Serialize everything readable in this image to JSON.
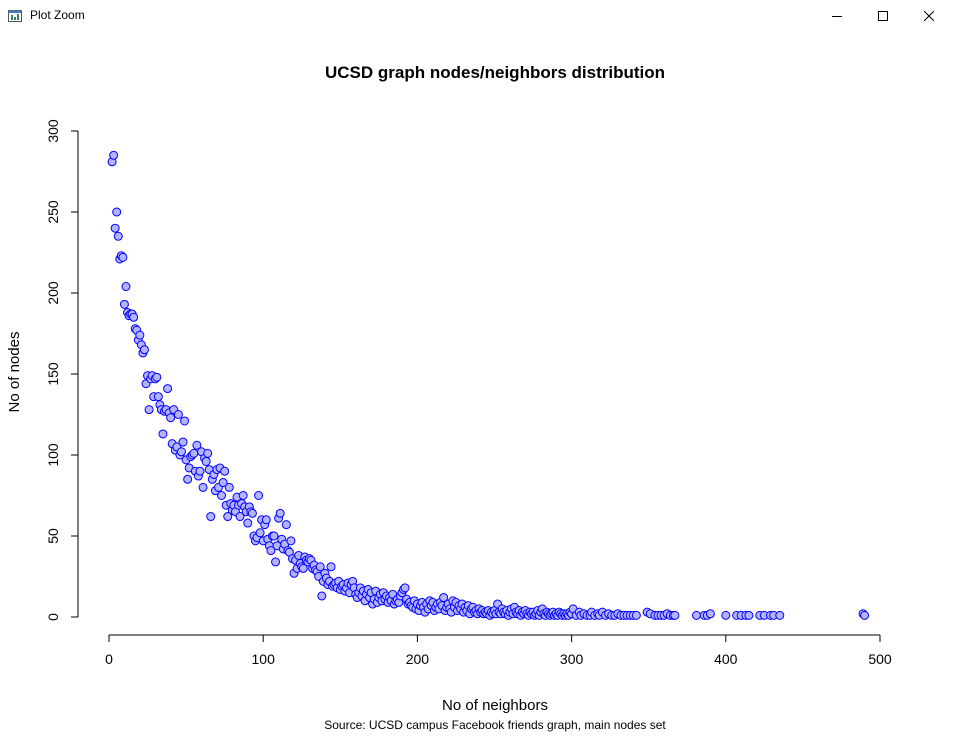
{
  "window": {
    "title": "Plot Zoom",
    "icons": {
      "app": "plot-window-icon",
      "minimize": "minimize-icon",
      "maximize": "maximize-icon",
      "close": "close-icon"
    }
  },
  "chart_data": {
    "type": "scatter",
    "title": "UCSD graph nodes/neighbors distribution",
    "xlabel": "No of neighbors",
    "ylabel": "No of nodes",
    "caption": "Source: UCSD campus Facebook friends graph, main nodes set",
    "xlim": [
      0,
      500
    ],
    "ylim": [
      0,
      300
    ],
    "x_ticks": [
      0,
      100,
      200,
      300,
      400,
      500
    ],
    "y_ticks": [
      0,
      50,
      100,
      150,
      200,
      250,
      300
    ],
    "grid": false,
    "legend": "none",
    "marker": {
      "shape": "circle",
      "stroke": "#0000ff",
      "fill": "#b3b3ff"
    },
    "points": [
      [
        2,
        281
      ],
      [
        3,
        285
      ],
      [
        4,
        240
      ],
      [
        5,
        250
      ],
      [
        6,
        235
      ],
      [
        7,
        221
      ],
      [
        8,
        223
      ],
      [
        9,
        222
      ],
      [
        10,
        193
      ],
      [
        11,
        204
      ],
      [
        12,
        188
      ],
      [
        13,
        186
      ],
      [
        14,
        187
      ],
      [
        15,
        187
      ],
      [
        16,
        185
      ],
      [
        17,
        178
      ],
      [
        18,
        177
      ],
      [
        19,
        171
      ],
      [
        20,
        174
      ],
      [
        21,
        168
      ],
      [
        22,
        163
      ],
      [
        23,
        165
      ],
      [
        24,
        144
      ],
      [
        25,
        149
      ],
      [
        26,
        128
      ],
      [
        27,
        147
      ],
      [
        28,
        149
      ],
      [
        29,
        136
      ],
      [
        30,
        147
      ],
      [
        31,
        148
      ],
      [
        32,
        136
      ],
      [
        33,
        131
      ],
      [
        34,
        128
      ],
      [
        35,
        113
      ],
      [
        36,
        127
      ],
      [
        37,
        128
      ],
      [
        38,
        141
      ],
      [
        39,
        126
      ],
      [
        40,
        123
      ],
      [
        41,
        107
      ],
      [
        42,
        128
      ],
      [
        43,
        103
      ],
      [
        44,
        105
      ],
      [
        45,
        125
      ],
      [
        46,
        100
      ],
      [
        47,
        102
      ],
      [
        48,
        108
      ],
      [
        49,
        121
      ],
      [
        50,
        97
      ],
      [
        51,
        85
      ],
      [
        52,
        92
      ],
      [
        53,
        99
      ],
      [
        54,
        100
      ],
      [
        55,
        101
      ],
      [
        56,
        90
      ],
      [
        57,
        106
      ],
      [
        58,
        87
      ],
      [
        59,
        90
      ],
      [
        60,
        102
      ],
      [
        61,
        80
      ],
      [
        62,
        98
      ],
      [
        63,
        96
      ],
      [
        64,
        101
      ],
      [
        65,
        91
      ],
      [
        66,
        62
      ],
      [
        67,
        85
      ],
      [
        68,
        88
      ],
      [
        69,
        78
      ],
      [
        70,
        91
      ],
      [
        71,
        80
      ],
      [
        72,
        92
      ],
      [
        73,
        75
      ],
      [
        74,
        83
      ],
      [
        75,
        90
      ],
      [
        76,
        69
      ],
      [
        77,
        62
      ],
      [
        78,
        80
      ],
      [
        79,
        70
      ],
      [
        80,
        66
      ],
      [
        81,
        69
      ],
      [
        82,
        65
      ],
      [
        83,
        74
      ],
      [
        84,
        69
      ],
      [
        85,
        62
      ],
      [
        86,
        70
      ],
      [
        87,
        75
      ],
      [
        88,
        68
      ],
      [
        89,
        65
      ],
      [
        90,
        58
      ],
      [
        91,
        68
      ],
      [
        92,
        65
      ],
      [
        93,
        64
      ],
      [
        94,
        50
      ],
      [
        95,
        47
      ],
      [
        96,
        49
      ],
      [
        97,
        75
      ],
      [
        98,
        52
      ],
      [
        99,
        60
      ],
      [
        100,
        47
      ],
      [
        101,
        57
      ],
      [
        102,
        60
      ],
      [
        103,
        48
      ],
      [
        104,
        44
      ],
      [
        105,
        41
      ],
      [
        106,
        50
      ],
      [
        107,
        50
      ],
      [
        108,
        34
      ],
      [
        109,
        44
      ],
      [
        110,
        61
      ],
      [
        111,
        64
      ],
      [
        112,
        48
      ],
      [
        113,
        42
      ],
      [
        114,
        45
      ],
      [
        115,
        57
      ],
      [
        116,
        41
      ],
      [
        117,
        40
      ],
      [
        118,
        47
      ],
      [
        119,
        36
      ],
      [
        120,
        27
      ],
      [
        121,
        35
      ],
      [
        122,
        30
      ],
      [
        123,
        38
      ],
      [
        124,
        33
      ],
      [
        125,
        31
      ],
      [
        126,
        30
      ],
      [
        127,
        37
      ],
      [
        128,
        35
      ],
      [
        129,
        34
      ],
      [
        130,
        36
      ],
      [
        131,
        35
      ],
      [
        132,
        30
      ],
      [
        133,
        32
      ],
      [
        134,
        29
      ],
      [
        135,
        28
      ],
      [
        136,
        25
      ],
      [
        137,
        31
      ],
      [
        138,
        13
      ],
      [
        139,
        22
      ],
      [
        140,
        27
      ],
      [
        141,
        24
      ],
      [
        142,
        20
      ],
      [
        143,
        22
      ],
      [
        144,
        31
      ],
      [
        145,
        19
      ],
      [
        146,
        20
      ],
      [
        147,
        21
      ],
      [
        148,
        18
      ],
      [
        149,
        22
      ],
      [
        150,
        17
      ],
      [
        151,
        19
      ],
      [
        152,
        20
      ],
      [
        153,
        16
      ],
      [
        154,
        18
      ],
      [
        155,
        21
      ],
      [
        156,
        15
      ],
      [
        157,
        20
      ],
      [
        158,
        22
      ],
      [
        159,
        18
      ],
      [
        160,
        14
      ],
      [
        161,
        12
      ],
      [
        162,
        15
      ],
      [
        163,
        18
      ],
      [
        164,
        13
      ],
      [
        165,
        16
      ],
      [
        166,
        10
      ],
      [
        167,
        14
      ],
      [
        168,
        17
      ],
      [
        169,
        12
      ],
      [
        170,
        15
      ],
      [
        171,
        8
      ],
      [
        172,
        11
      ],
      [
        173,
        16
      ],
      [
        174,
        9
      ],
      [
        175,
        12
      ],
      [
        176,
        14
      ],
      [
        177,
        10
      ],
      [
        178,
        15
      ],
      [
        179,
        11
      ],
      [
        180,
        13
      ],
      [
        181,
        9
      ],
      [
        182,
        12
      ],
      [
        183,
        10
      ],
      [
        184,
        14
      ],
      [
        185,
        8
      ],
      [
        186,
        10
      ],
      [
        187,
        11
      ],
      [
        188,
        9
      ],
      [
        189,
        13
      ],
      [
        190,
        15
      ],
      [
        191,
        17
      ],
      [
        192,
        18
      ],
      [
        193,
        11
      ],
      [
        194,
        8
      ],
      [
        195,
        9
      ],
      [
        196,
        7
      ],
      [
        197,
        6
      ],
      [
        198,
        10
      ],
      [
        199,
        5
      ],
      [
        200,
        8
      ],
      [
        201,
        4
      ],
      [
        202,
        7
      ],
      [
        203,
        9
      ],
      [
        204,
        6
      ],
      [
        205,
        3
      ],
      [
        206,
        8
      ],
      [
        207,
        5
      ],
      [
        208,
        10
      ],
      [
        209,
        7
      ],
      [
        210,
        9
      ],
      [
        211,
        4
      ],
      [
        212,
        6
      ],
      [
        213,
        8
      ],
      [
        214,
        5
      ],
      [
        215,
        9
      ],
      [
        216,
        7
      ],
      [
        217,
        12
      ],
      [
        218,
        4
      ],
      [
        219,
        6
      ],
      [
        220,
        8
      ],
      [
        221,
        5
      ],
      [
        222,
        3
      ],
      [
        223,
        10
      ],
      [
        224,
        6
      ],
      [
        225,
        9
      ],
      [
        226,
        4
      ],
      [
        227,
        7
      ],
      [
        228,
        5
      ],
      [
        229,
        8
      ],
      [
        230,
        3
      ],
      [
        231,
        6
      ],
      [
        232,
        4
      ],
      [
        233,
        7
      ],
      [
        234,
        2
      ],
      [
        235,
        5
      ],
      [
        236,
        6
      ],
      [
        237,
        3
      ],
      [
        238,
        4
      ],
      [
        239,
        2
      ],
      [
        240,
        5
      ],
      [
        241,
        3
      ],
      [
        242,
        4
      ],
      [
        243,
        2
      ],
      [
        244,
        3
      ],
      [
        245,
        2
      ],
      [
        246,
        4
      ],
      [
        247,
        1
      ],
      [
        248,
        3
      ],
      [
        249,
        2
      ],
      [
        250,
        4
      ],
      [
        251,
        2
      ],
      [
        252,
        8
      ],
      [
        253,
        3
      ],
      [
        254,
        2
      ],
      [
        255,
        5
      ],
      [
        256,
        3
      ],
      [
        257,
        2
      ],
      [
        258,
        4
      ],
      [
        259,
        1
      ],
      [
        260,
        3
      ],
      [
        261,
        5
      ],
      [
        262,
        2
      ],
      [
        263,
        6
      ],
      [
        264,
        3
      ],
      [
        265,
        2
      ],
      [
        266,
        4
      ],
      [
        267,
        1
      ],
      [
        268,
        3
      ],
      [
        269,
        2
      ],
      [
        270,
        4
      ],
      [
        271,
        2
      ],
      [
        272,
        1
      ],
      [
        273,
        3
      ],
      [
        274,
        2
      ],
      [
        275,
        3
      ],
      [
        276,
        1
      ],
      [
        277,
        2
      ],
      [
        278,
        4
      ],
      [
        279,
        1
      ],
      [
        280,
        3
      ],
      [
        281,
        5
      ],
      [
        282,
        2
      ],
      [
        283,
        1
      ],
      [
        284,
        3
      ],
      [
        285,
        2
      ],
      [
        286,
        1
      ],
      [
        287,
        2
      ],
      [
        288,
        3
      ],
      [
        289,
        1
      ],
      [
        290,
        2
      ],
      [
        291,
        1
      ],
      [
        292,
        3
      ],
      [
        293,
        2
      ],
      [
        294,
        1
      ],
      [
        295,
        2
      ],
      [
        296,
        1
      ],
      [
        297,
        2
      ],
      [
        298,
        1
      ],
      [
        299,
        3
      ],
      [
        300,
        2
      ],
      [
        301,
        5
      ],
      [
        303,
        1
      ],
      [
        305,
        3
      ],
      [
        306,
        1
      ],
      [
        308,
        2
      ],
      [
        310,
        1
      ],
      [
        312,
        1
      ],
      [
        313,
        3
      ],
      [
        315,
        1
      ],
      [
        317,
        2
      ],
      [
        318,
        1
      ],
      [
        320,
        3
      ],
      [
        322,
        1
      ],
      [
        324,
        2
      ],
      [
        326,
        1
      ],
      [
        328,
        1
      ],
      [
        330,
        2
      ],
      [
        332,
        1
      ],
      [
        334,
        1
      ],
      [
        336,
        1
      ],
      [
        338,
        1
      ],
      [
        340,
        1
      ],
      [
        342,
        1
      ],
      [
        349,
        3
      ],
      [
        351,
        2
      ],
      [
        354,
        1
      ],
      [
        356,
        1
      ],
      [
        358,
        1
      ],
      [
        360,
        1
      ],
      [
        362,
        2
      ],
      [
        364,
        1
      ],
      [
        366,
        1
      ],
      [
        367,
        1
      ],
      [
        381,
        1
      ],
      [
        386,
        1
      ],
      [
        388,
        1
      ],
      [
        390,
        2
      ],
      [
        400,
        1
      ],
      [
        407,
        1
      ],
      [
        410,
        1
      ],
      [
        413,
        1
      ],
      [
        415,
        1
      ],
      [
        422,
        1
      ],
      [
        425,
        1
      ],
      [
        429,
        1
      ],
      [
        431,
        1
      ],
      [
        435,
        1
      ],
      [
        489,
        2
      ],
      [
        490,
        1
      ]
    ]
  }
}
